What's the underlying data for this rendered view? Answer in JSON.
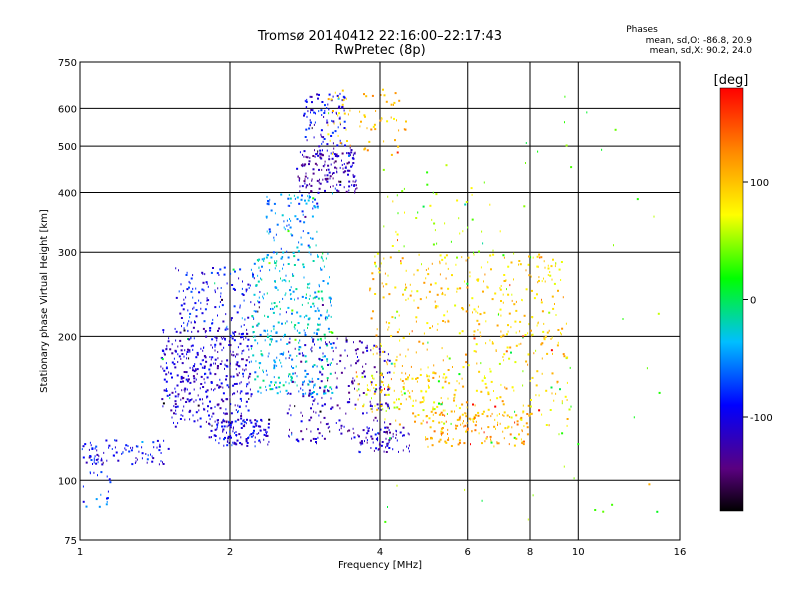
{
  "chart_data": {
    "type": "scatter",
    "title": "Tromsø 20140412 22:16:00–22:17:43",
    "subtitle": "RwPretec (8p)",
    "xlabel": "Frequency [MHz]",
    "ylabel": "Stationary phase Virtual Height [km]",
    "x_scale": "log",
    "y_scale": "log",
    "xlim": [
      1,
      16
    ],
    "ylim": [
      75,
      750
    ],
    "x_ticks": [
      1,
      2,
      4,
      6,
      8,
      10,
      16
    ],
    "y_ticks": [
      75,
      100,
      200,
      300,
      400,
      500,
      600,
      750
    ],
    "grid": true,
    "phases_box": {
      "title": "Phases",
      "line1": "mean, sd,O: -86.8, 20.9",
      "line2": "mean, sd,X:  90.2, 24.0"
    },
    "colorbar": {
      "label": "[deg]",
      "range": [
        -180,
        180
      ],
      "ticks": [
        100,
        0,
        -100
      ],
      "colormap": "rainbow"
    },
    "clusters": [
      {
        "f": [
          1.0,
          1.5
        ],
        "h": [
          108,
          122
        ],
        "phase": -95,
        "n": 90
      },
      {
        "f": [
          1.0,
          1.15
        ],
        "h": [
          88,
          105
        ],
        "phase": -75,
        "n": 20
      },
      {
        "f": [
          1.45,
          2.2
        ],
        "h": [
          130,
          210
        ],
        "phase": -110,
        "n": 420
      },
      {
        "f": [
          1.55,
          2.3
        ],
        "h": [
          210,
          280
        ],
        "phase": -95,
        "n": 130
      },
      {
        "f": [
          1.8,
          2.4
        ],
        "h": [
          118,
          135
        ],
        "phase": -100,
        "n": 120
      },
      {
        "f": [
          2.2,
          3.2
        ],
        "h": [
          150,
          300
        ],
        "phase": -35,
        "n": 380
      },
      {
        "f": [
          2.35,
          3.0
        ],
        "h": [
          300,
          400
        ],
        "phase": -50,
        "n": 90
      },
      {
        "f": [
          2.7,
          3.6
        ],
        "h": [
          400,
          500
        ],
        "phase": -125,
        "n": 170
      },
      {
        "f": [
          2.8,
          3.4
        ],
        "h": [
          500,
          650
        ],
        "phase": -100,
        "n": 90
      },
      {
        "f": [
          3.1,
          4.5
        ],
        "h": [
          480,
          660
        ],
        "phase": 100,
        "n": 70
      },
      {
        "f": [
          2.6,
          4.2
        ],
        "h": [
          120,
          200
        ],
        "phase": -120,
        "n": 230
      },
      {
        "f": [
          3.6,
          4.6
        ],
        "h": [
          115,
          130
        ],
        "phase": -115,
        "n": 70
      },
      {
        "f": [
          3.8,
          9.5
        ],
        "h": [
          130,
          300
        ],
        "phase": 95,
        "n": 520
      },
      {
        "f": [
          4.8,
          8.0
        ],
        "h": [
          118,
          140
        ],
        "phase": 110,
        "n": 130
      },
      {
        "f": [
          3.5,
          5.5
        ],
        "h": [
          140,
          170
        ],
        "phase": 80,
        "n": 80
      },
      {
        "f": [
          4.0,
          7.0
        ],
        "h": [
          300,
          420
        ],
        "phase": 60,
        "n": 40
      },
      {
        "f": [
          4.0,
          14.5
        ],
        "h": [
          80,
          650
        ],
        "phase": 30,
        "n": 70
      }
    ]
  }
}
